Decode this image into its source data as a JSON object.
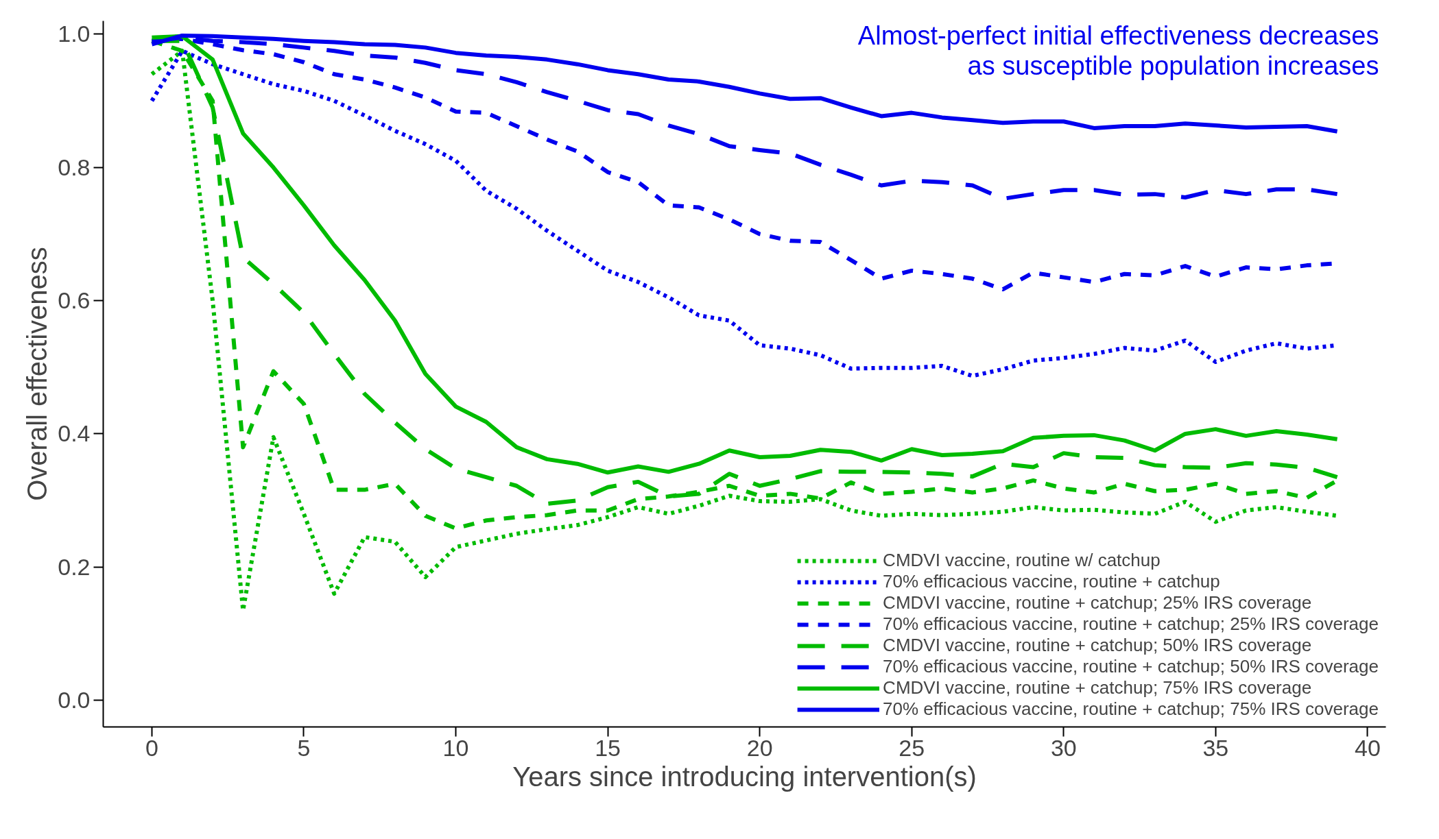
{
  "chart_data": {
    "type": "line",
    "xlabel": "Years since introducing intervention(s)",
    "ylabel": "Overall effectiveness",
    "annotations": [
      "Almost-perfect initial effectiveness decreases",
      "as susceptible population increases"
    ],
    "x": [
      0,
      1,
      2,
      3,
      4,
      5,
      6,
      7,
      8,
      9,
      10,
      11,
      12,
      13,
      14,
      15,
      16,
      17,
      18,
      19,
      20,
      21,
      22,
      23,
      24,
      25,
      26,
      27,
      28,
      29,
      30,
      31,
      32,
      33,
      34,
      35,
      36,
      37,
      38,
      39
    ],
    "xlim": [
      -1.6,
      40.6
    ],
    "xticks": [
      0,
      5,
      10,
      15,
      20,
      25,
      30,
      35,
      40
    ],
    "ylim": [
      -0.04,
      1.02
    ],
    "yticks": [
      {
        "value": 0,
        "label": "0.0"
      },
      0.2,
      0.4,
      0.6,
      0.8,
      {
        "value": 1,
        "label": "1.0"
      }
    ],
    "grid": false,
    "legend": "bottom right",
    "series": [
      {
        "name": "CMDVI vaccine, routine w/ catchup",
        "color": "#00bb00",
        "line_style": "dotted",
        "values": [
          0.94,
          0.975,
          0.6,
          0.135,
          0.395,
          0.28,
          0.16,
          0.245,
          0.238,
          0.185,
          0.23,
          0.24,
          0.25,
          0.257,
          0.263,
          0.275,
          0.29,
          0.28,
          0.292,
          0.307,
          0.299,
          0.298,
          0.302,
          0.285,
          0.277,
          0.28,
          0.278,
          0.28,
          0.283,
          0.29,
          0.285,
          0.286,
          0.282,
          0.28,
          0.298,
          0.268,
          0.285,
          0.29,
          0.283,
          0.277
        ]
      },
      {
        "name": "70% efficacious vaccine, routine + catchup",
        "color": "#0000ee",
        "line_style": "dotted",
        "values": [
          0.9,
          0.975,
          0.955,
          0.94,
          0.925,
          0.915,
          0.9,
          0.878,
          0.855,
          0.835,
          0.81,
          0.765,
          0.738,
          0.705,
          0.675,
          0.645,
          0.628,
          0.605,
          0.578,
          0.57,
          0.533,
          0.528,
          0.518,
          0.498,
          0.499,
          0.499,
          0.502,
          0.487,
          0.497,
          0.51,
          0.514,
          0.52,
          0.529,
          0.525,
          0.54,
          0.508,
          0.525,
          0.536,
          0.528,
          0.533
        ]
      },
      {
        "name": "CMDVI vaccine, routine + catchup; 25% IRS coverage",
        "color": "#00bb00",
        "line_style": "dashed",
        "values": [
          0.99,
          0.975,
          0.9,
          0.38,
          0.494,
          0.445,
          0.316,
          0.316,
          0.325,
          0.277,
          0.258,
          0.27,
          0.275,
          0.278,
          0.285,
          0.285,
          0.302,
          0.306,
          0.313,
          0.322,
          0.307,
          0.31,
          0.303,
          0.327,
          0.31,
          0.313,
          0.318,
          0.312,
          0.318,
          0.33,
          0.318,
          0.312,
          0.325,
          0.314,
          0.316,
          0.325,
          0.31,
          0.314,
          0.304,
          0.33
        ]
      },
      {
        "name": "70% efficacious vaccine, routine + catchup; 25% IRS coverage",
        "color": "#0000ee",
        "line_style": "dashed",
        "values": [
          0.99,
          0.993,
          0.985,
          0.976,
          0.97,
          0.958,
          0.94,
          0.932,
          0.92,
          0.905,
          0.884,
          0.882,
          0.862,
          0.842,
          0.824,
          0.793,
          0.778,
          0.743,
          0.74,
          0.722,
          0.7,
          0.69,
          0.688,
          0.661,
          0.633,
          0.645,
          0.64,
          0.633,
          0.617,
          0.642,
          0.635,
          0.628,
          0.64,
          0.638,
          0.652,
          0.636,
          0.65,
          0.647,
          0.653,
          0.656
        ]
      },
      {
        "name": "CMDVI vaccine, routine + catchup; 50% IRS coverage",
        "color": "#00bb00",
        "line_style": "longdash",
        "values": [
          0.99,
          0.99,
          0.89,
          0.665,
          0.625,
          0.582,
          0.52,
          0.46,
          0.417,
          0.377,
          0.348,
          0.335,
          0.322,
          0.295,
          0.3,
          0.32,
          0.328,
          0.306,
          0.31,
          0.34,
          0.322,
          0.332,
          0.344,
          0.343,
          0.343,
          0.342,
          0.34,
          0.336,
          0.355,
          0.35,
          0.371,
          0.365,
          0.364,
          0.353,
          0.35,
          0.349,
          0.356,
          0.354,
          0.349,
          0.335
        ]
      },
      {
        "name": "70% efficacious vaccine, routine + catchup; 50% IRS coverage",
        "color": "#0000ee",
        "line_style": "longdash",
        "values": [
          0.99,
          0.995,
          0.99,
          0.988,
          0.985,
          0.98,
          0.975,
          0.968,
          0.965,
          0.957,
          0.946,
          0.94,
          0.928,
          0.913,
          0.9,
          0.886,
          0.88,
          0.863,
          0.85,
          0.832,
          0.826,
          0.821,
          0.804,
          0.789,
          0.773,
          0.78,
          0.778,
          0.773,
          0.753,
          0.76,
          0.766,
          0.766,
          0.759,
          0.76,
          0.755,
          0.766,
          0.76,
          0.767,
          0.767,
          0.76
        ]
      },
      {
        "name": "CMDVI vaccine, routine + catchup; 75% IRS coverage",
        "color": "#00bb00",
        "line_style": "solid",
        "values": [
          0.995,
          0.997,
          0.962,
          0.851,
          0.8,
          0.743,
          0.683,
          0.631,
          0.57,
          0.49,
          0.441,
          0.418,
          0.38,
          0.362,
          0.355,
          0.342,
          0.351,
          0.343,
          0.355,
          0.375,
          0.365,
          0.367,
          0.376,
          0.373,
          0.36,
          0.377,
          0.368,
          0.37,
          0.374,
          0.394,
          0.397,
          0.398,
          0.39,
          0.375,
          0.4,
          0.407,
          0.397,
          0.404,
          0.399,
          0.392
        ]
      },
      {
        "name": "70% efficacious vaccine, routine + catchup; 75% IRS coverage",
        "color": "#0000ee",
        "line_style": "solid",
        "values": [
          0.985,
          0.998,
          0.997,
          0.995,
          0.993,
          0.99,
          0.988,
          0.985,
          0.984,
          0.98,
          0.972,
          0.968,
          0.966,
          0.962,
          0.955,
          0.946,
          0.94,
          0.932,
          0.929,
          0.921,
          0.911,
          0.903,
          0.904,
          0.89,
          0.877,
          0.882,
          0.875,
          0.871,
          0.867,
          0.869,
          0.869,
          0.859,
          0.862,
          0.862,
          0.866,
          0.863,
          0.86,
          0.861,
          0.862,
          0.854
        ]
      }
    ]
  }
}
